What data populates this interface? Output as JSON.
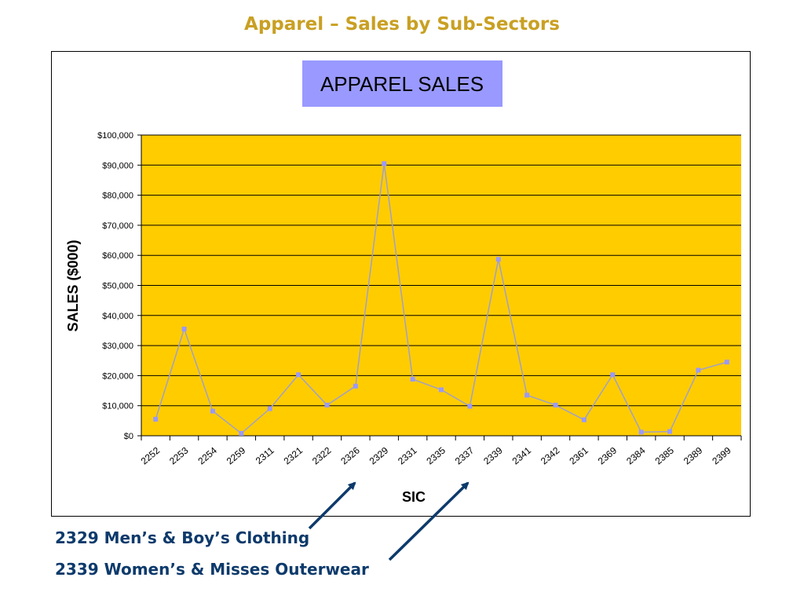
{
  "slide_title": "Apparel – Sales by Sub-Sectors",
  "colors": {
    "title": "#c9a023",
    "plot_background": "#ffcc00",
    "chart_title_background": "#9999ff",
    "series_line": "#a0a0c8",
    "series_marker": "#9999ff",
    "annotation_text": "#0d3a6b",
    "arrow": "#0d3a6b"
  },
  "chart_data": {
    "type": "line",
    "title": "APPAREL SALES",
    "xlabel": "SIC",
    "ylabel": "SALES ($000)",
    "ylim": [
      0,
      100000
    ],
    "yticks": [
      "$0",
      "$10,000",
      "$20,000",
      "$30,000",
      "$40,000",
      "$50,000",
      "$60,000",
      "$70,000",
      "$80,000",
      "$90,000",
      "$100,000"
    ],
    "grid": true,
    "legend": "none",
    "categories": [
      "2252",
      "2253",
      "2254",
      "2259",
      "2311",
      "2321",
      "2322",
      "2326",
      "2329",
      "2331",
      "2335",
      "2337",
      "2339",
      "2341",
      "2342",
      "2361",
      "2369",
      "2384",
      "2385",
      "2389",
      "2399"
    ],
    "series": [
      {
        "values": [
          5500,
          35500,
          8200,
          800,
          9000,
          20300,
          10200,
          16500,
          90500,
          18800,
          15300,
          9800,
          58700,
          13500,
          10200,
          5300,
          20300,
          1200,
          1400,
          21800,
          24500
        ]
      }
    ]
  },
  "annotations": [
    {
      "text": "2329 Men’s & Boy’s Clothing",
      "points_to": "2329"
    },
    {
      "text": "2339 Women’s & Misses Outerwear",
      "points_to": "2339"
    }
  ]
}
